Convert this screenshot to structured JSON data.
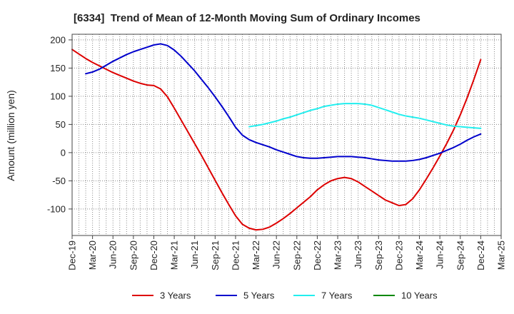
{
  "chart_data": {
    "type": "line",
    "title": "[6334]  Trend of Mean of 12-Month Moving Sum of Ordinary Incomes",
    "xlabel": "",
    "ylabel": "Amount (million yen)",
    "ylim": [
      -147,
      210
    ],
    "yticks": [
      200,
      150,
      100,
      50,
      0,
      -50,
      -100
    ],
    "xlim_months": [
      0,
      63
    ],
    "xtick_step_months": 3,
    "xtick_labels": [
      "Dec-19",
      "Mar-20",
      "Jun-20",
      "Sep-20",
      "Dec-20",
      "Mar-21",
      "Jun-21",
      "Sep-21",
      "Dec-21",
      "Mar-22",
      "Jun-22",
      "Sep-22",
      "Dec-22",
      "Mar-23",
      "Jun-23",
      "Sep-23",
      "Dec-23",
      "Mar-24",
      "Jun-24",
      "Sep-24",
      "Dec-24",
      "Mar-25"
    ],
    "grid": true,
    "legend_position": "bottom",
    "series": [
      {
        "name": "3 Years",
        "color": "#dd0000",
        "start_month": 0,
        "values": [
          183,
          175,
          167,
          160,
          154,
          148,
          142,
          137,
          132,
          127,
          123,
          120,
          119,
          113,
          99,
          79,
          58,
          37,
          16,
          -5,
          -27,
          -49,
          -71,
          -92,
          -112,
          -127,
          -134,
          -137,
          -136,
          -132,
          -125,
          -117,
          -108,
          -98,
          -88,
          -78,
          -66,
          -57,
          -50,
          -46,
          -44,
          -46,
          -52,
          -60,
          -68,
          -76,
          -84,
          -89,
          -94,
          -92,
          -82,
          -66,
          -47,
          -27,
          -6,
          16,
          40,
          67,
          97,
          130,
          165
        ]
      },
      {
        "name": "5 Years",
        "color": "#0000cc",
        "start_month": 2,
        "values": [
          140,
          143,
          148,
          155,
          162,
          168,
          174,
          179,
          183,
          187,
          191,
          193,
          190,
          182,
          171,
          158,
          145,
          130,
          115,
          99,
          82,
          64,
          45,
          31,
          23,
          18,
          14,
          10,
          5,
          1,
          -3,
          -7,
          -9,
          -10,
          -10,
          -9,
          -8,
          -7,
          -7,
          -7,
          -8,
          -9,
          -11,
          -13,
          -14,
          -15,
          -15,
          -15,
          -14,
          -12,
          -9,
          -5,
          -1,
          4,
          9,
          15,
          22,
          28,
          33
        ]
      },
      {
        "name": "7 Years",
        "color": "#22eeee",
        "start_month": 26,
        "values": [
          46,
          48,
          50,
          53,
          56,
          60,
          63,
          67,
          71,
          75,
          78,
          82,
          84,
          86,
          87,
          87,
          87,
          86,
          84,
          80,
          76,
          72,
          68,
          65,
          63,
          61,
          58,
          55,
          52,
          49,
          47,
          46,
          45,
          44,
          43
        ]
      },
      {
        "name": "10 Years",
        "color": "#008800",
        "start_month": null,
        "values": []
      }
    ]
  }
}
